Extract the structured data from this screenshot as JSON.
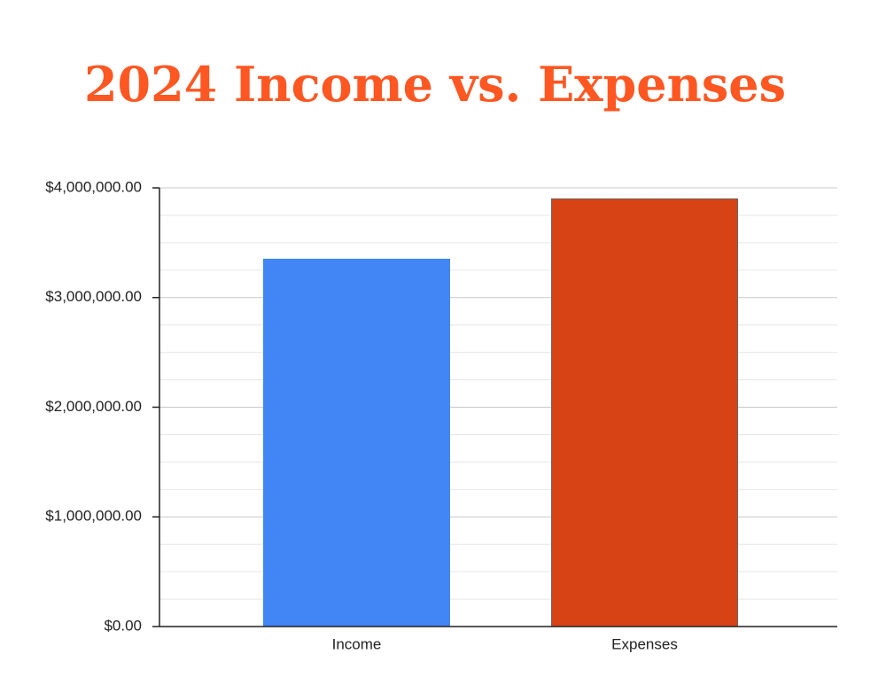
{
  "chart_data": {
    "type": "bar",
    "title": "2024 Income vs. Expenses",
    "categories": [
      "Income",
      "Expenses"
    ],
    "values": [
      3350000,
      3900000
    ],
    "colors": [
      "#4285f4",
      "#d84315"
    ],
    "ylim": [
      0,
      4000000
    ],
    "yticks": [
      {
        "value": 0,
        "label": "$0.00"
      },
      {
        "value": 1000000,
        "label": "$1,000,000.00"
      },
      {
        "value": 2000000,
        "label": "$2,000,000.00"
      },
      {
        "value": 3000000,
        "label": "$3,000,000.00"
      },
      {
        "value": 4000000,
        "label": "$4,000,000.00"
      }
    ],
    "minor_yticks": [
      250000,
      500000,
      750000,
      1250000,
      1500000,
      1750000,
      2250000,
      2500000,
      2750000,
      3250000,
      3500000,
      3750000
    ],
    "grid": true
  }
}
